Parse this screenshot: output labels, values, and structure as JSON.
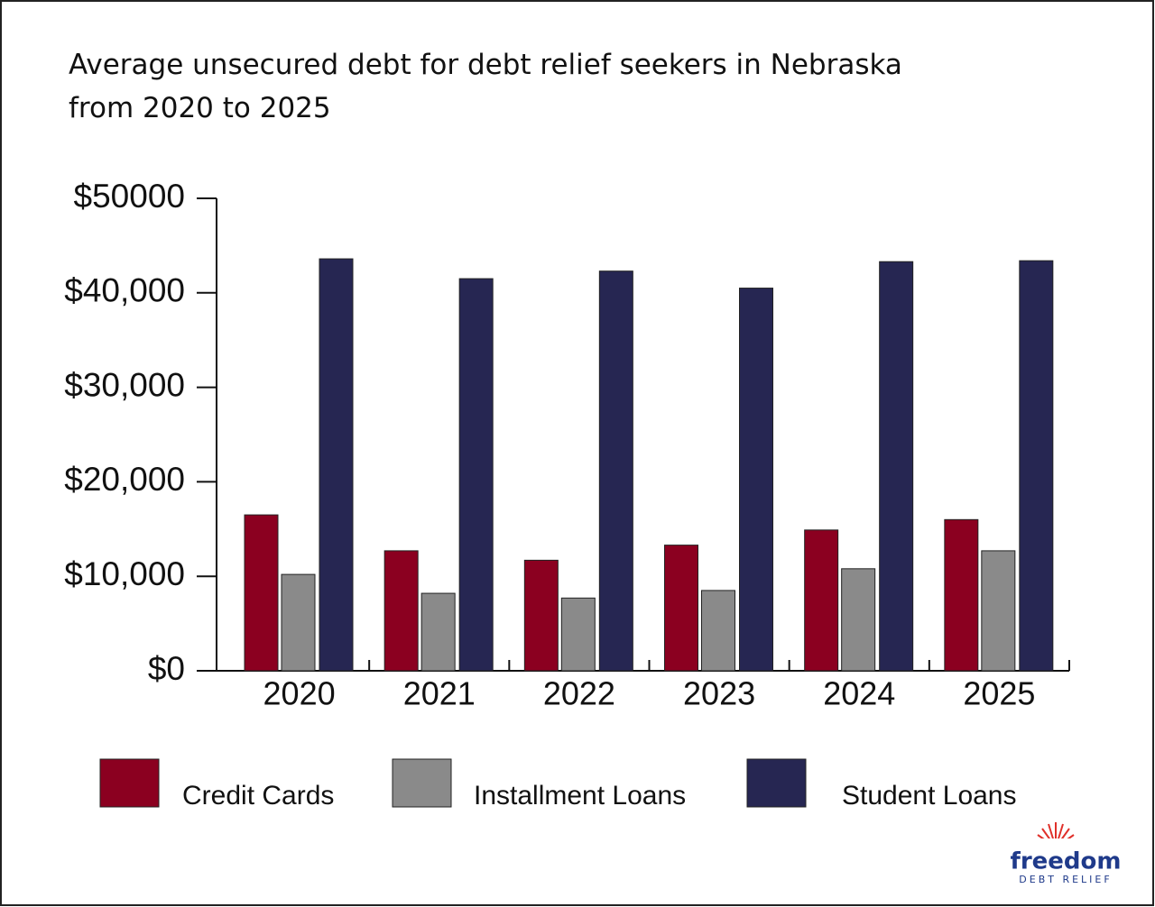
{
  "chart_data": {
    "type": "bar",
    "title": [
      "Average unsecured debt for debt relief seekers in Nebraska",
      "from 2020 to 2025"
    ],
    "categories": [
      "2020",
      "2021",
      "2022",
      "2023",
      "2024",
      "2025"
    ],
    "series": [
      {
        "name": "Credit Cards",
        "color": "#8b0020",
        "values": [
          16500,
          12700,
          11700,
          13300,
          14900,
          16000
        ]
      },
      {
        "name": "Installment Loans",
        "color": "#8a8a8a",
        "values": [
          10200,
          8200,
          7700,
          8500,
          10800,
          12700
        ]
      },
      {
        "name": "Student Loans",
        "color": "#262652",
        "values": [
          43600,
          41500,
          42300,
          40500,
          43300,
          43400
        ]
      }
    ],
    "ylim": [
      0,
      50000
    ],
    "yticks": [
      {
        "value": 0,
        "label": "$0"
      },
      {
        "value": 10000,
        "label": "$10,000"
      },
      {
        "value": 20000,
        "label": "$20,000"
      },
      {
        "value": 30000,
        "label": "$30,000"
      },
      {
        "value": 40000,
        "label": "$40,000"
      },
      {
        "value": 50000,
        "label": "$50000"
      }
    ],
    "grid": false,
    "legend": "bottom"
  },
  "logo": {
    "name": "freedom",
    "tagline": "DEBT RELIEF"
  }
}
